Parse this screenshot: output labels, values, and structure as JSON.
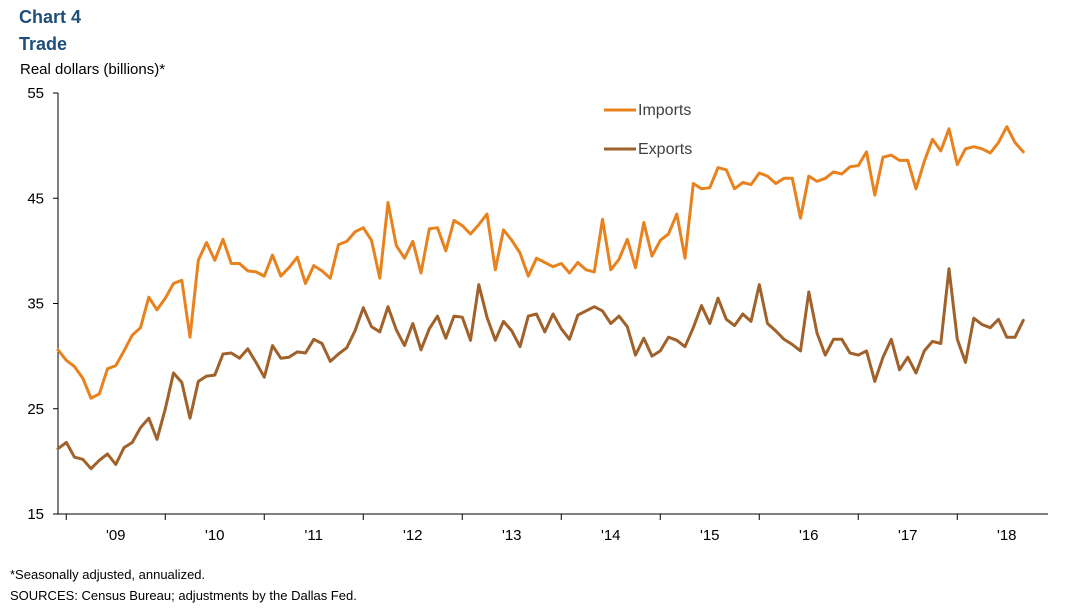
{
  "header": {
    "chart_number": "Chart 4",
    "title": "Trade",
    "y_axis_label": "Real dollars  (billions)*"
  },
  "footer": {
    "footnote": "*Seasonally adjusted, annualized.",
    "sources": "SOURCES:  Census Bureau; adjustments by the Dallas Fed."
  },
  "colors": {
    "imports": "#e8821e",
    "exports": "#a0622a",
    "title": "#1f4e79"
  },
  "chart_data": {
    "type": "line",
    "title": "Trade",
    "ylabel": "Real dollars  (billions)*",
    "ylim": [
      15,
      55
    ],
    "y_ticks": [
      15,
      25,
      35,
      45,
      55
    ],
    "x_tick_labels": [
      "'09",
      "'10",
      "'11",
      "'12",
      "'13",
      "'14",
      "'15",
      "'16",
      "'17",
      "'18"
    ],
    "x_start": "2008-12",
    "x_end": "2018-12",
    "x_first_point": "2008-12",
    "grid": false,
    "legend": "top-right",
    "series": [
      {
        "name": "Imports",
        "color": "#e8821e",
        "values": [
          30.6,
          29.6,
          29.0,
          27.9,
          26.0,
          26.4,
          28.8,
          29.1,
          30.5,
          32.0,
          32.7,
          35.6,
          34.4,
          35.5,
          36.9,
          37.2,
          31.8,
          39.1,
          40.8,
          39.1,
          41.1,
          38.8,
          38.8,
          38.1,
          38.0,
          37.6,
          39.6,
          37.6,
          38.4,
          39.4,
          36.9,
          38.6,
          38.1,
          37.4,
          40.6,
          40.9,
          41.8,
          42.2,
          41.0,
          37.4,
          44.6,
          40.5,
          39.3,
          40.9,
          37.9,
          42.1,
          42.2,
          40.0,
          42.9,
          42.4,
          41.6,
          42.5,
          43.5,
          38.2,
          42.0,
          41.0,
          39.8,
          37.6,
          39.3,
          38.9,
          38.5,
          38.8,
          37.9,
          38.9,
          38.2,
          38.0,
          43.0,
          38.2,
          39.2,
          41.1,
          38.4,
          42.7,
          39.5,
          41.0,
          41.6,
          43.5,
          39.3,
          46.4,
          45.9,
          46.0,
          47.9,
          47.7,
          45.9,
          46.5,
          46.3,
          47.4,
          47.1,
          46.4,
          46.9,
          46.9,
          43.1,
          47.1,
          46.6,
          46.9,
          47.5,
          47.3,
          48.0,
          48.1,
          49.4,
          45.3,
          48.9,
          49.1,
          48.6,
          48.6,
          45.9,
          48.5,
          50.6,
          49.5,
          51.6,
          48.2,
          49.7,
          49.9,
          49.7,
          49.3,
          50.3,
          51.8,
          50.3,
          49.4
        ]
      },
      {
        "name": "Exports",
        "color": "#a0622a",
        "values": [
          21.2,
          21.8,
          20.4,
          20.2,
          19.3,
          20.1,
          20.7,
          19.7,
          21.3,
          21.8,
          23.2,
          24.1,
          22.1,
          25.0,
          28.4,
          27.5,
          24.1,
          27.6,
          28.1,
          28.2,
          30.2,
          30.3,
          29.8,
          30.7,
          29.4,
          28.0,
          31.0,
          29.8,
          29.9,
          30.4,
          30.3,
          31.6,
          31.2,
          29.5,
          30.2,
          30.8,
          32.4,
          34.6,
          32.8,
          32.3,
          34.7,
          32.5,
          31.0,
          33.1,
          30.6,
          32.6,
          33.8,
          31.7,
          33.8,
          33.7,
          31.5,
          36.8,
          33.7,
          31.5,
          33.3,
          32.4,
          30.9,
          33.8,
          34.0,
          32.3,
          34.0,
          32.6,
          31.6,
          33.9,
          34.3,
          34.7,
          34.3,
          33.1,
          33.8,
          32.8,
          30.1,
          31.7,
          30.0,
          30.5,
          31.8,
          31.5,
          30.9,
          32.7,
          34.8,
          33.1,
          35.5,
          33.5,
          32.9,
          34.0,
          33.3,
          36.8,
          33.1,
          32.4,
          31.6,
          31.1,
          30.5,
          36.1,
          32.2,
          30.1,
          31.6,
          31.6,
          30.3,
          30.1,
          30.5,
          27.6,
          29.9,
          31.6,
          28.7,
          29.9,
          28.4,
          30.5,
          31.4,
          31.2,
          38.3,
          31.6,
          29.4,
          33.6,
          33.0,
          32.7,
          33.5,
          31.8,
          31.8,
          33.4
        ]
      }
    ]
  }
}
